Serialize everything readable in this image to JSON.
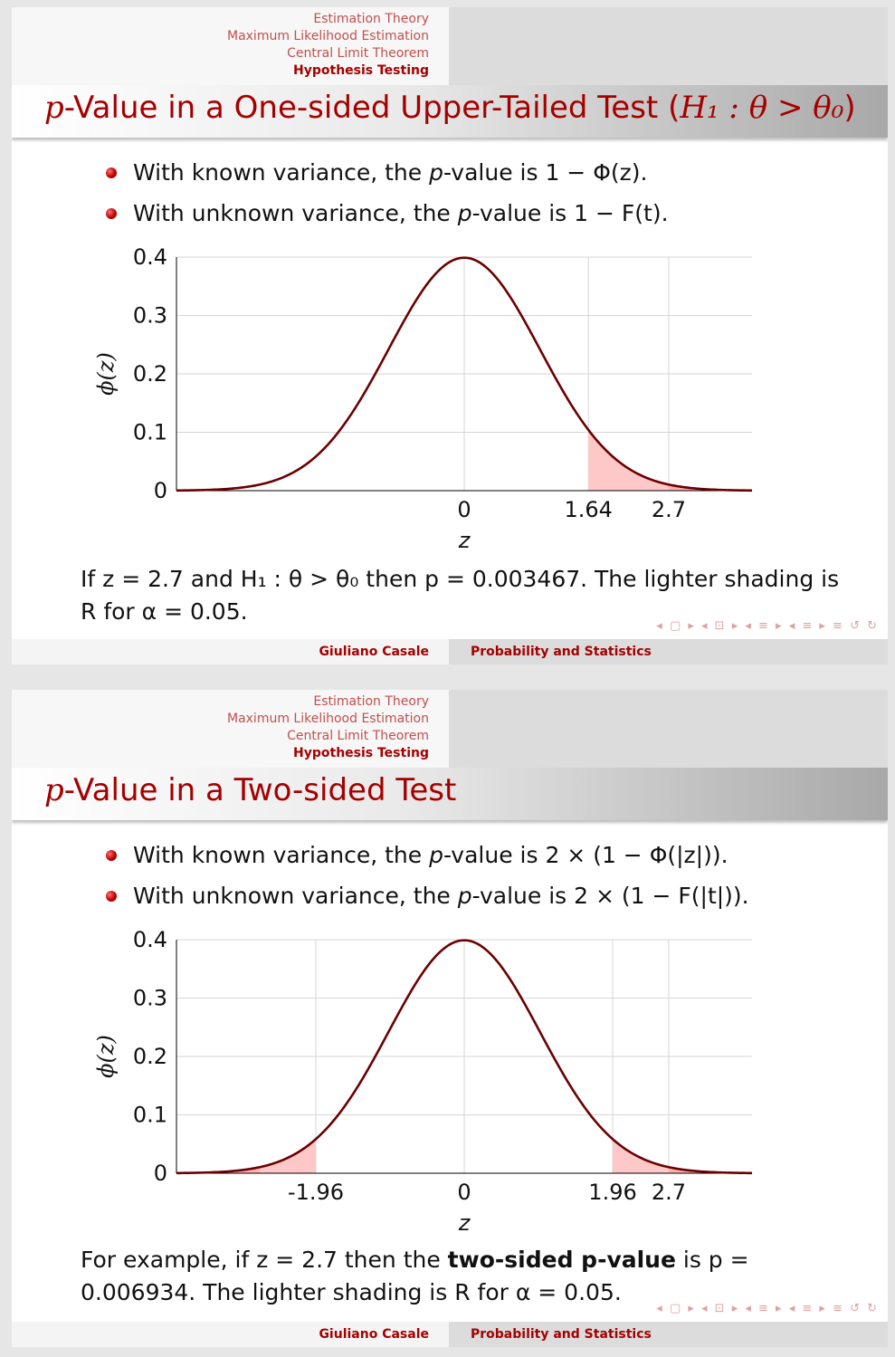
{
  "nav": {
    "sections": [
      "Estimation Theory",
      "Maximum Likelihood Estimation",
      "Central Limit Theorem",
      "Hypothesis Testing"
    ],
    "active_index": 3
  },
  "footer": {
    "author": "Giuliano Casale",
    "course": "Probability and Statistics"
  },
  "beamer_nav_symbols": "◂ ▢ ▸ ◂ ⊡ ▸ ◂ ≡ ▸ ◂ ≡ ▸   ≡   ↺ ↻",
  "colors": {
    "accent": "#a50000",
    "curve": "#6b0000",
    "shade": "#ffc8c8",
    "grid": "#d6d6d6"
  },
  "slides": [
    {
      "title_prefix": "p",
      "title_text": "-Value in a One-sided Upper-Tailed Test (",
      "title_math": "H₁ : θ > θ₀",
      "title_suffix": ")",
      "bullets": [
        {
          "pre": "With known variance, the ",
          "var": "p",
          "post": "-value is 1 − Φ(z)."
        },
        {
          "pre": "With unknown variance, the ",
          "var": "p",
          "post": "-value is 1 − F(t)."
        }
      ],
      "note_parts": [
        "If z = 2.7 and H₁ : θ > θ₀ then p = 0.003467. The lighter shading is R for α = 0.05."
      ],
      "chart_data": {
        "type": "area",
        "function": "standard normal density",
        "xlabel": "z",
        "ylabel": "ϕ(z)",
        "xlim": [
          -3.8,
          3.8
        ],
        "ylim": [
          0,
          0.4
        ],
        "yticks": [
          0,
          0.1,
          0.2,
          0.3,
          0.4
        ],
        "yticklabels": [
          "0",
          "0.1",
          "0.2",
          "0.3",
          "0.4"
        ],
        "xticks": [
          0,
          1.64,
          2.7
        ],
        "xticklabels": [
          "0",
          "1.64",
          "2.7"
        ],
        "vgrid": [
          0,
          1.64,
          2.7
        ],
        "shaded_regions": [
          {
            "from": 1.64,
            "to": 3.8,
            "shade": "light"
          },
          {
            "from": 2.7,
            "to": 3.8,
            "shade": "dark"
          }
        ],
        "grid": true
      }
    },
    {
      "title_prefix": "p",
      "title_text": "-Value in a Two-sided Test",
      "title_math": "",
      "title_suffix": "",
      "bullets": [
        {
          "pre": "With known variance, the ",
          "var": "p",
          "post": "-value is 2 × (1 − Φ(|z|))."
        },
        {
          "pre": "With unknown variance, the ",
          "var": "p",
          "post": "-value is 2 × (1 − F(|t|))."
        }
      ],
      "note_parts": [
        "For example, if z = 2.7 then the ",
        "two-sided p-value",
        " is p = 0.006934. The lighter shading is R for α = 0.05."
      ],
      "chart_data": {
        "type": "area",
        "function": "standard normal density",
        "xlabel": "z",
        "ylabel": "ϕ(z)",
        "xlim": [
          -3.8,
          3.8
        ],
        "ylim": [
          0,
          0.4
        ],
        "yticks": [
          0,
          0.1,
          0.2,
          0.3,
          0.4
        ],
        "yticklabels": [
          "0",
          "0.1",
          "0.2",
          "0.3",
          "0.4"
        ],
        "xticks": [
          -1.96,
          0,
          1.96,
          2.7
        ],
        "xticklabels": [
          "-1.96",
          "0",
          "1.96",
          "2.7"
        ],
        "vgrid": [
          -1.96,
          0,
          1.96,
          2.7
        ],
        "shaded_regions": [
          {
            "from": -3.8,
            "to": -1.96,
            "shade": "light"
          },
          {
            "from": -3.8,
            "to": -2.7,
            "shade": "dark"
          },
          {
            "from": 1.96,
            "to": 3.8,
            "shade": "light"
          },
          {
            "from": 2.7,
            "to": 3.8,
            "shade": "dark"
          }
        ],
        "grid": true
      }
    }
  ]
}
